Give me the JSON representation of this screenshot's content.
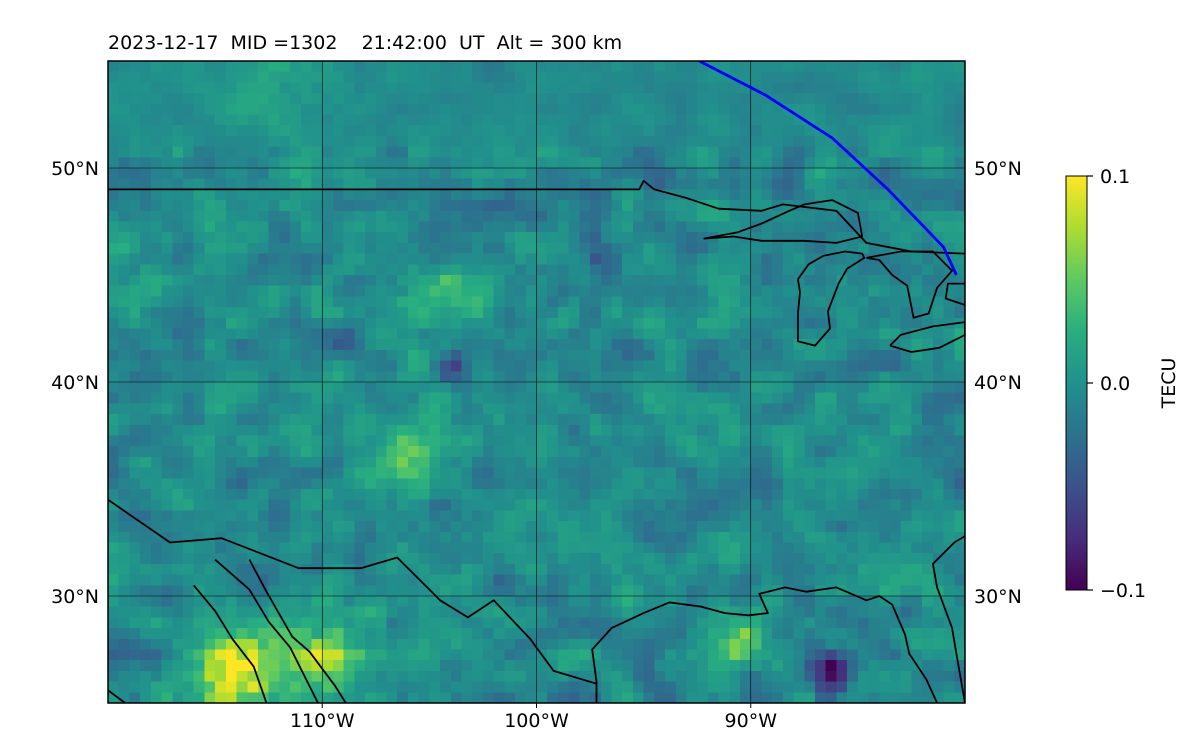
{
  "chart_data": {
    "type": "heatmap",
    "title": "2023-12-17  MID =1302    21:42:00  UT  Alt = 300 km",
    "x_axis": {
      "min": -120,
      "max": -80,
      "tick_values": [
        -110,
        -100,
        -90
      ],
      "tick_labels": [
        "110°W",
        "100°W",
        "90°W"
      ]
    },
    "y_axis": {
      "min": 25,
      "max": 55,
      "tick_values": [
        30,
        40,
        50
      ],
      "tick_labels": [
        "30°N",
        "40°N",
        "50°N"
      ]
    },
    "grid": true,
    "colorbar": {
      "label": "TECU",
      "min": -0.1,
      "max": 0.1,
      "tick_values": [
        -0.1,
        0.0,
        0.1
      ],
      "tick_labels": [
        "−0.1",
        "0.0",
        "0.1"
      ],
      "colormap": "viridis",
      "placement": "right"
    },
    "grid_resolution_deg": 0.5,
    "field": {
      "background_tec": -0.005,
      "noise_amplitude": 0.035,
      "features": [
        {
          "name": "positive-cluster-sw-mexico",
          "lon": -114,
          "lat": 26.5,
          "value": 0.1,
          "radius_deg": 2.2
        },
        {
          "name": "positive-cluster-nw-mexico",
          "lon": -110,
          "lat": 27.2,
          "value": 0.08,
          "radius_deg": 1.8
        },
        {
          "name": "positive-patch-southwest",
          "lon": -106,
          "lat": 36.5,
          "value": 0.05,
          "radius_deg": 1.5
        },
        {
          "name": "positive-patch-central",
          "lon": -104.5,
          "lat": 44,
          "value": 0.04,
          "radius_deg": 1.5
        },
        {
          "name": "positive-patch-gulf",
          "lon": -90.5,
          "lat": 28,
          "value": 0.05,
          "radius_deg": 1.2
        },
        {
          "name": "negative-patch-gulf",
          "lon": -86.5,
          "lat": 26.2,
          "value": -0.08,
          "radius_deg": 1.0
        },
        {
          "name": "negative-patch-plains",
          "lon": -104,
          "lat": 40.8,
          "value": -0.06,
          "radius_deg": 0.7
        },
        {
          "name": "negative-patch-lakes",
          "lon": -97,
          "lat": 45.8,
          "value": -0.05,
          "radius_deg": 0.8
        },
        {
          "name": "smooth-high-canada",
          "lon": -112,
          "lat": 53.5,
          "value": 0.02,
          "radius_deg": 3.0
        }
      ]
    },
    "satellite_track": {
      "color": "#0000ff",
      "points": [
        {
          "lon": -92.4,
          "lat": 55
        },
        {
          "lon": -89.3,
          "lat": 53.4
        },
        {
          "lon": -86.2,
          "lat": 51.4
        },
        {
          "lon": -83.6,
          "lat": 49.0
        },
        {
          "lon": -81.0,
          "lat": 46.3
        },
        {
          "lon": -80.4,
          "lat": 45.0
        }
      ]
    },
    "coastlines": [
      [
        [
          -120,
          49
        ],
        [
          -95.2,
          49
        ],
        [
          -95.0,
          49.4
        ],
        [
          -94.5,
          49.0
        ],
        [
          -93,
          48.6
        ],
        [
          -91.5,
          48.1
        ],
        [
          -89.5,
          48.0
        ],
        [
          -88.5,
          48.3
        ],
        [
          -86,
          48
        ],
        [
          -84.6,
          46.5
        ],
        [
          -82.5,
          46.1
        ],
        [
          -80,
          46
        ]
      ],
      [
        [
          -92.2,
          46.7
        ],
        [
          -90.6,
          47.0
        ],
        [
          -89.5,
          47.4
        ],
        [
          -88.2,
          48.0
        ],
        [
          -87.5,
          48.3
        ],
        [
          -86.2,
          48.5
        ],
        [
          -85.0,
          47.9
        ],
        [
          -84.8,
          46.8
        ],
        [
          -86.0,
          46.5
        ],
        [
          -87.5,
          46.6
        ],
        [
          -89.5,
          46.6
        ],
        [
          -90.8,
          46.8
        ],
        [
          -92.2,
          46.7
        ]
      ],
      [
        [
          -87.8,
          44.8
        ],
        [
          -87.3,
          45.5
        ],
        [
          -86.6,
          45.9
        ],
        [
          -85.6,
          46.1
        ],
        [
          -84.8,
          46.0
        ],
        [
          -84.7,
          45.8
        ],
        [
          -85.5,
          45.3
        ],
        [
          -85.9,
          44.6
        ],
        [
          -86.4,
          43.3
        ],
        [
          -86.3,
          42.5
        ],
        [
          -87.0,
          41.7
        ],
        [
          -87.8,
          41.9
        ],
        [
          -87.8,
          43.2
        ],
        [
          -87.7,
          44.2
        ],
        [
          -87.8,
          44.8
        ]
      ],
      [
        [
          -84.6,
          45.8
        ],
        [
          -84.0,
          45.7
        ],
        [
          -83.4,
          45.0
        ],
        [
          -82.7,
          44.5
        ],
        [
          -82.4,
          43.0
        ],
        [
          -81.7,
          43.2
        ],
        [
          -81.3,
          44.4
        ],
        [
          -80.6,
          45.2
        ],
        [
          -81.5,
          46.1
        ],
        [
          -83.0,
          46.1
        ],
        [
          -84.6,
          45.8
        ]
      ],
      [
        [
          -83.5,
          41.7
        ],
        [
          -82.5,
          41.4
        ],
        [
          -81.2,
          41.6
        ],
        [
          -80.0,
          42.2
        ],
        [
          -80,
          42.8
        ],
        [
          -81.5,
          42.6
        ],
        [
          -83.0,
          42.2
        ],
        [
          -83.5,
          41.7
        ]
      ],
      [
        [
          -80,
          44.6
        ],
        [
          -80.8,
          44.6
        ],
        [
          -80.9,
          43.9
        ],
        [
          -80,
          43.6
        ]
      ],
      [
        [
          -120,
          34.5
        ],
        [
          -117.1,
          32.5
        ],
        [
          -114.7,
          32.7
        ],
        [
          -111.1,
          31.3
        ],
        [
          -108.2,
          31.3
        ],
        [
          -106.5,
          31.8
        ],
        [
          -104.5,
          29.8
        ],
        [
          -103.2,
          29.0
        ],
        [
          -102.0,
          29.8
        ],
        [
          -100.3,
          28.0
        ],
        [
          -99.2,
          26.5
        ],
        [
          -97.2,
          25.9
        ]
      ],
      [
        [
          -97.2,
          25.0
        ],
        [
          -97.2,
          26.0
        ],
        [
          -97.4,
          27.5
        ],
        [
          -96.5,
          28.5
        ],
        [
          -95.0,
          29.2
        ],
        [
          -93.8,
          29.7
        ],
        [
          -92.3,
          29.5
        ],
        [
          -91.2,
          29.2
        ],
        [
          -90.1,
          29.1
        ],
        [
          -89.2,
          29.2
        ],
        [
          -89.6,
          30.1
        ],
        [
          -88.4,
          30.4
        ],
        [
          -87.4,
          30.2
        ],
        [
          -86.0,
          30.4
        ],
        [
          -84.6,
          29.8
        ],
        [
          -84.0,
          30.0
        ],
        [
          -83.4,
          29.6
        ],
        [
          -82.8,
          28.2
        ],
        [
          -82.6,
          27.3
        ],
        [
          -81.8,
          26.1
        ],
        [
          -81.3,
          25.0
        ]
      ],
      [
        [
          -80,
          25.0
        ],
        [
          -80.4,
          27.3
        ],
        [
          -80.6,
          28.5
        ],
        [
          -81.3,
          30.4
        ],
        [
          -81.5,
          31.5
        ],
        [
          -80.5,
          32.5
        ],
        [
          -80,
          32.8
        ]
      ],
      [
        [
          -120,
          25.6
        ],
        [
          -119.2,
          25.0
        ]
      ],
      [
        [
          -115,
          31.7
        ],
        [
          -113.4,
          30.3
        ],
        [
          -112.5,
          28.8
        ],
        [
          -111.5,
          27.6
        ],
        [
          -110.2,
          25.0
        ]
      ],
      [
        [
          -113.4,
          31.7
        ],
        [
          -112.6,
          30.2
        ],
        [
          -111.4,
          28.1
        ],
        [
          -110.6,
          27.4
        ],
        [
          -109.4,
          25.8
        ],
        [
          -108.9,
          25.0
        ]
      ],
      [
        [
          -116.0,
          30.5
        ],
        [
          -115.0,
          29.3
        ],
        [
          -114.2,
          28.0
        ],
        [
          -113.2,
          26.7
        ],
        [
          -112.6,
          25.0
        ]
      ]
    ]
  }
}
